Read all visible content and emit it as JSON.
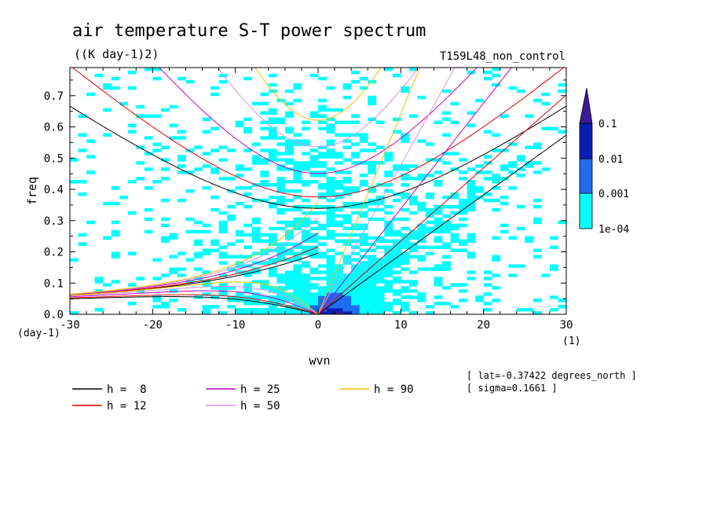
{
  "chart_data": {
    "type": "heatmap",
    "title": "air temperature S-T power spectrum",
    "subtitle": "((K day-1)2)",
    "run_label": "T159L48_non_control",
    "xlabel": "wvn",
    "ylabel": "freq",
    "x_unit": "(1)",
    "y_unit": "(day-1)",
    "xlim": [
      -30,
      30
    ],
    "ylim": [
      0,
      0.79
    ],
    "x_ticks": [
      -30,
      -20,
      -10,
      0,
      10,
      20,
      30
    ],
    "x_tick_labels": [
      "-30",
      "-20",
      "-10",
      "0",
      "10",
      "20",
      "30"
    ],
    "y_ticks": [
      0,
      0.1,
      0.2,
      0.3,
      0.4,
      0.5,
      0.6,
      0.7
    ],
    "y_tick_labels": [
      "0.0",
      "0.1",
      "0.2",
      "0.3",
      "0.4",
      "0.5",
      "0.6",
      "0.7"
    ],
    "colorbar": {
      "levels": [
        "1e-04",
        "0.001",
        "0.01",
        "0.1"
      ],
      "colors": [
        "#00ffff",
        "#1e6cf0",
        "#0a1eb4",
        "#3c1a96"
      ],
      "extend": "max"
    },
    "dispersion_curves": [
      {
        "label": "h =  8",
        "h": 8,
        "color": "#000000"
      },
      {
        "label": "h = 12",
        "h": 12,
        "color": "#e00000"
      },
      {
        "label": "h = 25",
        "h": 25,
        "color": "#c000c0"
      },
      {
        "label": "h = 50",
        "h": 50,
        "color": "#d890e0"
      },
      {
        "label": "h = 90",
        "h": 90,
        "color": "#f0c000"
      }
    ],
    "annotations": [
      "[ lat=-0.37422 degrees_north ]",
      "[ sigma=0.1661 ]"
    ]
  }
}
